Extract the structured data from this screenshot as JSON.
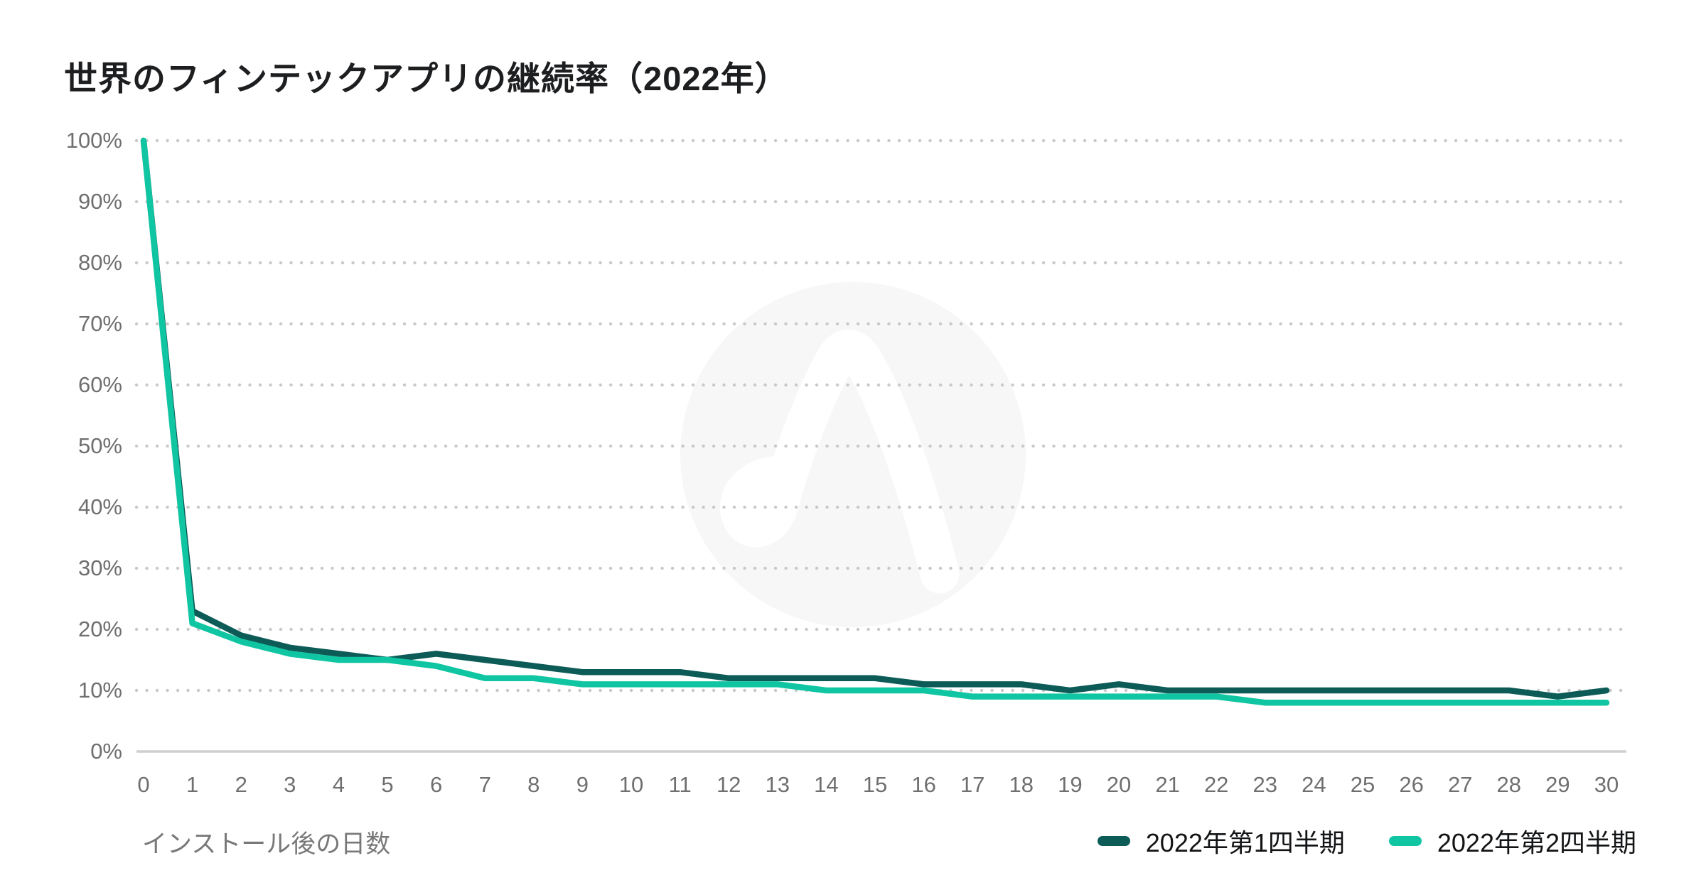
{
  "chart_data": {
    "type": "line",
    "title": "世界のフィンテックアプリの継続率（2022年）",
    "xlabel": "インストール後の日数",
    "ylabel": "",
    "x": [
      0,
      1,
      2,
      3,
      4,
      5,
      6,
      7,
      8,
      9,
      10,
      11,
      12,
      13,
      14,
      15,
      16,
      17,
      18,
      19,
      20,
      21,
      22,
      23,
      24,
      25,
      26,
      27,
      28,
      29,
      30
    ],
    "xticks": [
      "0",
      "1",
      "2",
      "3",
      "4",
      "5",
      "6",
      "7",
      "8",
      "9",
      "10",
      "11",
      "12",
      "13",
      "14",
      "15",
      "16",
      "17",
      "18",
      "19",
      "20",
      "21",
      "22",
      "23",
      "24",
      "25",
      "26",
      "27",
      "28",
      "29",
      "30"
    ],
    "yticks": [
      {
        "value": 0,
        "label": "0%"
      },
      {
        "value": 10,
        "label": "10%"
      },
      {
        "value": 20,
        "label": "20%"
      },
      {
        "value": 30,
        "label": "30%"
      },
      {
        "value": 40,
        "label": "40%"
      },
      {
        "value": 50,
        "label": "50%"
      },
      {
        "value": 60,
        "label": "60%"
      },
      {
        "value": 70,
        "label": "70%"
      },
      {
        "value": 80,
        "label": "80%"
      },
      {
        "value": 90,
        "label": "90%"
      },
      {
        "value": 100,
        "label": "100%"
      }
    ],
    "ylim": [
      0,
      100
    ],
    "xlim": [
      0,
      30
    ],
    "grid": "horizontal-dotted",
    "legend_position": "bottom-right",
    "series": [
      {
        "name": "2022年第1四半期",
        "color": "#0c5b57",
        "values": [
          100,
          23,
          19,
          17,
          16,
          15,
          16,
          15,
          14,
          13,
          13,
          13,
          12,
          12,
          12,
          12,
          11,
          11,
          11,
          10,
          11,
          10,
          10,
          10,
          10,
          10,
          10,
          10,
          10,
          9,
          10
        ]
      },
      {
        "name": "2022年第2四半期",
        "color": "#10c6a2",
        "values": [
          100,
          21,
          18,
          16,
          15,
          15,
          14,
          12,
          12,
          11,
          11,
          11,
          11,
          11,
          10,
          10,
          10,
          9,
          9,
          9,
          9,
          9,
          9,
          8,
          8,
          8,
          8,
          8,
          8,
          8,
          8
        ]
      }
    ],
    "watermark": "appsflyer-logo",
    "colors": {
      "grid_dots": "#c9c9c9",
      "axis_line": "#cfcfcf",
      "tick_text": "#6f6f6f",
      "title_text": "#1d1e20",
      "watermark_circle": "#f7f7f7",
      "watermark_glyph": "#ffffff"
    }
  }
}
